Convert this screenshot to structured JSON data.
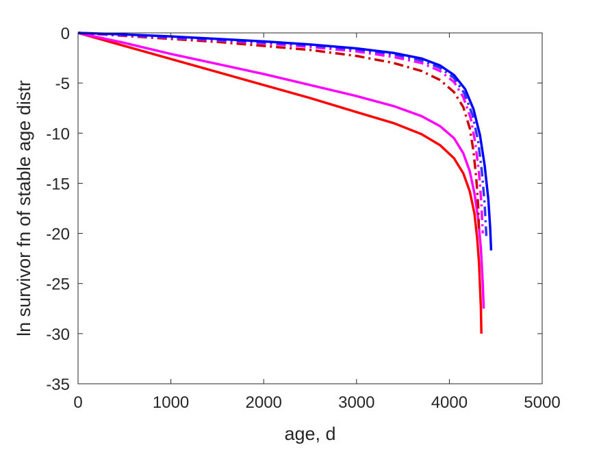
{
  "chart_data": {
    "type": "line",
    "title": "",
    "xlabel": "age, d",
    "ylabel": "ln survivor fn of stable age distr",
    "xlim": [
      0,
      5000
    ],
    "ylim": [
      -35,
      0
    ],
    "xticks": [
      0,
      1000,
      2000,
      3000,
      4000,
      5000
    ],
    "yticks": [
      0,
      -5,
      -10,
      -15,
      -20,
      -25,
      -30,
      -35
    ],
    "xtick_labels": [
      "0",
      "1000",
      "2000",
      "3000",
      "4000",
      "5000"
    ],
    "ytick_labels": [
      "0",
      "-5",
      "-10",
      "-15",
      "-20",
      "-25",
      "-30",
      "-35"
    ],
    "grid": false,
    "legend": "none",
    "box": true,
    "series": [
      {
        "color": "#ff0000",
        "style": "solid",
        "width": 3.5,
        "x": [
          0,
          500,
          1000,
          1500,
          2000,
          2500,
          3000,
          3400,
          3700,
          3900,
          4050,
          4150,
          4220,
          4270,
          4300,
          4320,
          4340,
          4345
        ],
        "y": [
          0,
          -1.3,
          -2.6,
          -3.9,
          -5.2,
          -6.5,
          -7.9,
          -9.0,
          -10.1,
          -11.2,
          -12.5,
          -14.0,
          -15.8,
          -18.0,
          -20.5,
          -23.0,
          -27.5,
          -30.0
        ]
      },
      {
        "color": "#ff00ff",
        "style": "solid",
        "width": 3.5,
        "x": [
          0,
          500,
          1000,
          1500,
          2000,
          2500,
          3000,
          3400,
          3700,
          3900,
          4050,
          4150,
          4220,
          4270,
          4310,
          4340,
          4360,
          4370
        ],
        "y": [
          0,
          -1.0,
          -2.1,
          -3.1,
          -4.1,
          -5.2,
          -6.3,
          -7.3,
          -8.3,
          -9.3,
          -10.5,
          -12.0,
          -13.8,
          -16.0,
          -18.5,
          -21.5,
          -25.0,
          -27.5
        ]
      },
      {
        "color": "#cc0000",
        "style": "dashdot",
        "width": 3.5,
        "x": [
          0,
          500,
          1000,
          1500,
          2000,
          2500,
          3000,
          3400,
          3700,
          3900,
          4050,
          4150,
          4220,
          4260,
          4290,
          4310,
          4320
        ],
        "y": [
          0,
          -0.3,
          -0.6,
          -0.9,
          -1.3,
          -1.7,
          -2.3,
          -3.0,
          -3.8,
          -4.7,
          -5.9,
          -7.4,
          -9.5,
          -11.8,
          -14.5,
          -17.2,
          -19.8
        ]
      },
      {
        "color": "#ff00ff",
        "style": "dashdot",
        "width": 3.5,
        "x": [
          0,
          500,
          1000,
          1500,
          2000,
          2500,
          3000,
          3400,
          3700,
          3900,
          4050,
          4150,
          4230,
          4280,
          4320,
          4345,
          4360
        ],
        "y": [
          0,
          -0.25,
          -0.5,
          -0.75,
          -1.05,
          -1.4,
          -1.85,
          -2.4,
          -3.0,
          -3.8,
          -4.9,
          -6.4,
          -8.5,
          -11.0,
          -14.0,
          -17.0,
          -20.0
        ]
      },
      {
        "color": "#3333ff",
        "style": "dashdot",
        "width": 3.5,
        "x": [
          0,
          500,
          1000,
          1500,
          2000,
          2500,
          3000,
          3400,
          3700,
          3900,
          4050,
          4160,
          4250,
          4310,
          4350,
          4380,
          4400
        ],
        "y": [
          0,
          -0.2,
          -0.45,
          -0.7,
          -0.95,
          -1.25,
          -1.65,
          -2.15,
          -2.75,
          -3.5,
          -4.5,
          -6.0,
          -8.2,
          -10.8,
          -13.8,
          -17.0,
          -20.5
        ]
      },
      {
        "color": "#0000ff",
        "style": "solid",
        "width": 3.5,
        "x": [
          0,
          500,
          1000,
          1500,
          2000,
          2500,
          3000,
          3400,
          3700,
          3900,
          4050,
          4170,
          4260,
          4330,
          4380,
          4420,
          4440,
          4450
        ],
        "y": [
          0,
          -0.15,
          -0.35,
          -0.6,
          -0.85,
          -1.15,
          -1.55,
          -2.0,
          -2.55,
          -3.25,
          -4.2,
          -5.6,
          -7.6,
          -10.2,
          -13.2,
          -16.6,
          -19.5,
          -21.7
        ]
      }
    ]
  }
}
